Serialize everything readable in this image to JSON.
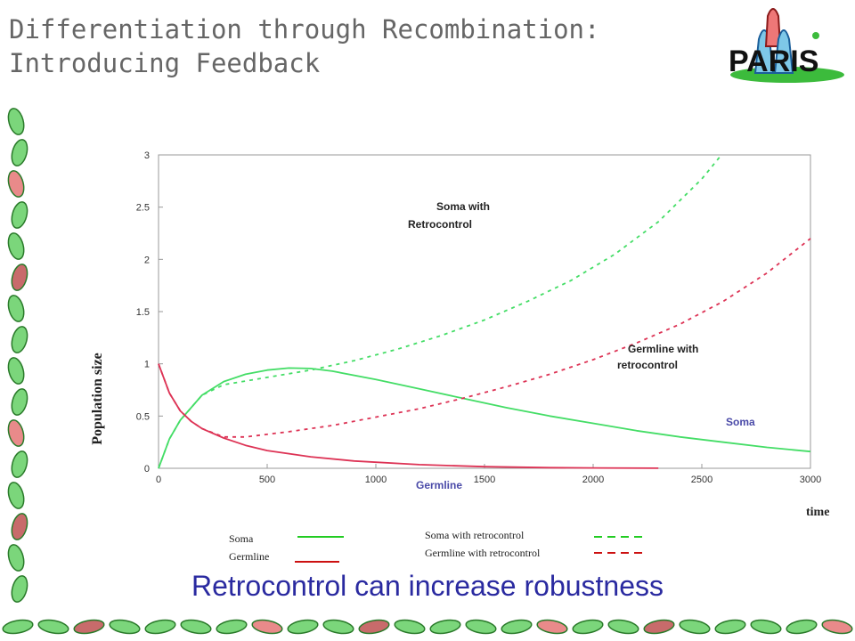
{
  "slide": {
    "title_line1": "Differentiation through Recombination:",
    "title_line2": "Introducing Feedback",
    "subtitle": "Retrocontrol can increase robustness",
    "logo_text": "PARIS"
  },
  "chart_data": {
    "type": "line",
    "xlabel": "time",
    "ylabel": "Population size",
    "xlim": [
      0,
      3000
    ],
    "ylim": [
      0,
      3
    ],
    "x_ticks": [
      0,
      500,
      1000,
      1500,
      2000,
      2500,
      3000
    ],
    "y_ticks": [
      0,
      0.5,
      1,
      1.5,
      2,
      2.5,
      3
    ],
    "x_tick_labels": [
      "0",
      "500",
      "1000",
      "1500",
      "2000",
      "2500",
      "3000"
    ],
    "y_tick_labels": [
      "0",
      "0.5",
      "1",
      "1.5",
      "2",
      "2.5",
      "3"
    ],
    "series": [
      {
        "name": "Soma",
        "color": "#44dd66",
        "dash": "solid",
        "x": [
          0,
          50,
          100,
          200,
          300,
          400,
          500,
          600,
          700,
          800,
          1000,
          1200,
          1400,
          1600,
          1800,
          2000,
          2200,
          2400,
          2600,
          2800,
          3000
        ],
        "y": [
          0,
          0.28,
          0.46,
          0.7,
          0.83,
          0.9,
          0.94,
          0.96,
          0.955,
          0.93,
          0.85,
          0.76,
          0.67,
          0.58,
          0.5,
          0.43,
          0.36,
          0.3,
          0.25,
          0.2,
          0.16
        ]
      },
      {
        "name": "Germline",
        "color": "#dd3355",
        "dash": "solid",
        "x": [
          0,
          50,
          100,
          150,
          200,
          300,
          400,
          500,
          700,
          900,
          1200,
          1500,
          1800,
          2000,
          2300
        ],
        "y": [
          1,
          0.72,
          0.55,
          0.45,
          0.38,
          0.29,
          0.22,
          0.17,
          0.11,
          0.07,
          0.035,
          0.015,
          0.006,
          0.003,
          0.001
        ]
      },
      {
        "name": "Soma with retrocontrol",
        "color": "#44dd66",
        "dash": "dashed",
        "x": [
          0,
          50,
          100,
          200,
          300,
          500,
          700,
          900,
          1100,
          1300,
          1500,
          1700,
          1900,
          2100,
          2300,
          2500,
          2590
        ],
        "y": [
          0,
          0.28,
          0.46,
          0.7,
          0.8,
          0.87,
          0.94,
          1.03,
          1.14,
          1.27,
          1.42,
          1.6,
          1.8,
          2.05,
          2.36,
          2.77,
          3.0
        ]
      },
      {
        "name": "Germline with retrocontrol",
        "color": "#dd3355",
        "dash": "dashed",
        "x": [
          0,
          50,
          100,
          150,
          200,
          300,
          400,
          600,
          800,
          1000,
          1200,
          1400,
          1600,
          1800,
          2000,
          2200,
          2400,
          2600,
          2800,
          3000
        ],
        "y": [
          1,
          0.72,
          0.55,
          0.45,
          0.38,
          0.3,
          0.3,
          0.35,
          0.41,
          0.49,
          0.57,
          0.67,
          0.78,
          0.9,
          1.04,
          1.2,
          1.38,
          1.6,
          1.87,
          2.2
        ]
      }
    ],
    "annotations": [
      "Soma with",
      "Retrocontrol",
      "Germline with",
      "retrocontrol",
      "Soma",
      "Germline"
    ],
    "legend": {
      "items": [
        "Soma",
        "Germline",
        "Soma with retrocontrol",
        "Germline with retrocontrol"
      ],
      "colors": [
        "#22cc22",
        "#cc1111",
        "#22cc22",
        "#cc1111"
      ]
    }
  }
}
